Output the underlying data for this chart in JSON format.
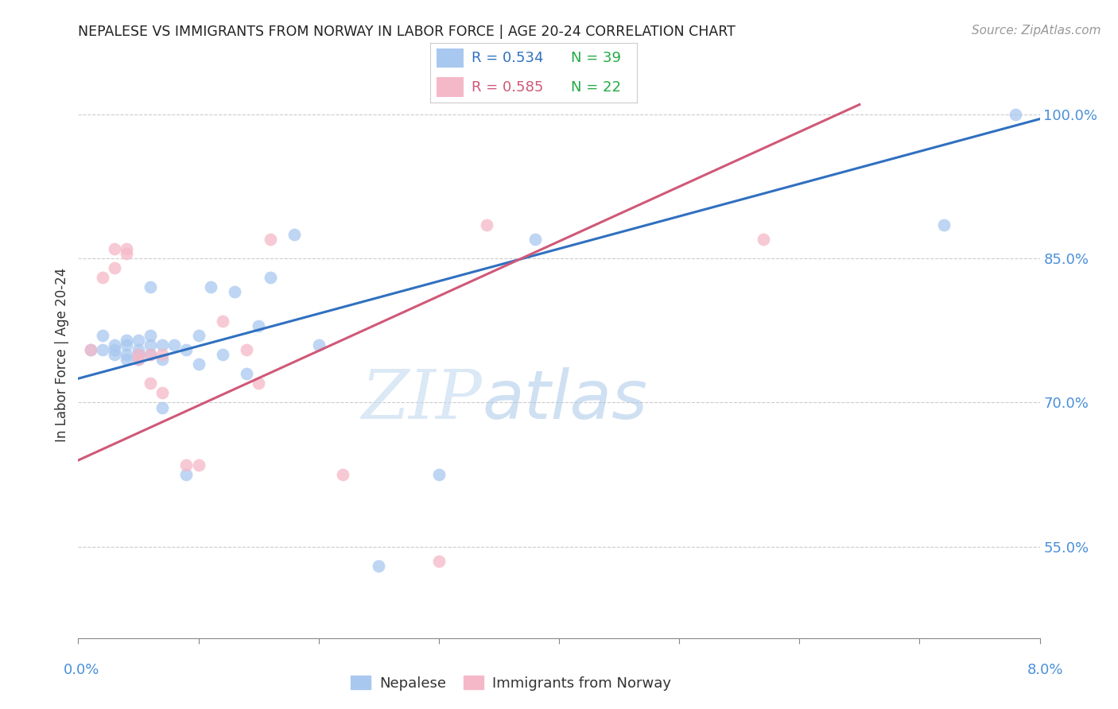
{
  "title": "NEPALESE VS IMMIGRANTS FROM NORWAY IN LABOR FORCE | AGE 20-24 CORRELATION CHART",
  "source": "Source: ZipAtlas.com",
  "ylabel": "In Labor Force | Age 20-24",
  "ytick_labels": [
    "100.0%",
    "85.0%",
    "70.0%",
    "55.0%"
  ],
  "ytick_values": [
    1.0,
    0.85,
    0.7,
    0.55
  ],
  "xlim": [
    0.0,
    0.08
  ],
  "ylim": [
    0.455,
    1.045
  ],
  "legend_blue_r": "R = 0.534",
  "legend_blue_n": "N = 39",
  "legend_pink_r": "R = 0.585",
  "legend_pink_n": "N = 22",
  "nepalese_label": "Nepalese",
  "norway_label": "Immigrants from Norway",
  "blue_scatter_color": "#a8c8f0",
  "pink_scatter_color": "#f5b8c8",
  "blue_line_color": "#3070c0",
  "pink_line_color": "#d05878",
  "blue_legend_color": "#3070c0",
  "pink_legend_color": "#d05878",
  "green_legend_color": "#22aa44",
  "nepalese_x": [
    0.001,
    0.002,
    0.002,
    0.003,
    0.003,
    0.003,
    0.004,
    0.004,
    0.004,
    0.004,
    0.005,
    0.005,
    0.005,
    0.005,
    0.006,
    0.006,
    0.006,
    0.006,
    0.007,
    0.007,
    0.007,
    0.008,
    0.009,
    0.009,
    0.01,
    0.01,
    0.011,
    0.012,
    0.013,
    0.014,
    0.015,
    0.016,
    0.018,
    0.02,
    0.025,
    0.03,
    0.038,
    0.072,
    0.078
  ],
  "nepalese_y": [
    0.755,
    0.755,
    0.77,
    0.75,
    0.755,
    0.76,
    0.75,
    0.745,
    0.76,
    0.765,
    0.75,
    0.745,
    0.755,
    0.765,
    0.82,
    0.75,
    0.77,
    0.76,
    0.695,
    0.745,
    0.76,
    0.76,
    0.625,
    0.755,
    0.77,
    0.74,
    0.82,
    0.75,
    0.815,
    0.73,
    0.78,
    0.83,
    0.875,
    0.76,
    0.53,
    0.625,
    0.87,
    0.885,
    1.0
  ],
  "norway_x": [
    0.001,
    0.002,
    0.003,
    0.003,
    0.004,
    0.004,
    0.005,
    0.005,
    0.006,
    0.006,
    0.007,
    0.007,
    0.009,
    0.01,
    0.012,
    0.014,
    0.015,
    0.016,
    0.022,
    0.03,
    0.034,
    0.057
  ],
  "norway_y": [
    0.755,
    0.83,
    0.84,
    0.86,
    0.855,
    0.86,
    0.75,
    0.745,
    0.72,
    0.75,
    0.71,
    0.75,
    0.635,
    0.635,
    0.785,
    0.755,
    0.72,
    0.87,
    0.625,
    0.535,
    0.885,
    0.87
  ],
  "blue_trend_x0": 0.0,
  "blue_trend_x1": 0.08,
  "blue_trend_y0": 0.725,
  "blue_trend_y1": 0.995,
  "pink_trend_x0": 0.0,
  "pink_trend_x1": 0.065,
  "pink_trend_y0": 0.64,
  "pink_trend_y1": 1.01,
  "watermark_zip": "ZIP",
  "watermark_atlas": "atlas",
  "background_color": "#ffffff",
  "grid_color": "#cccccc",
  "title_color": "#222222",
  "ylabel_color": "#333333",
  "tick_label_color": "#4a90d9",
  "bottom_label_color": "#333333"
}
